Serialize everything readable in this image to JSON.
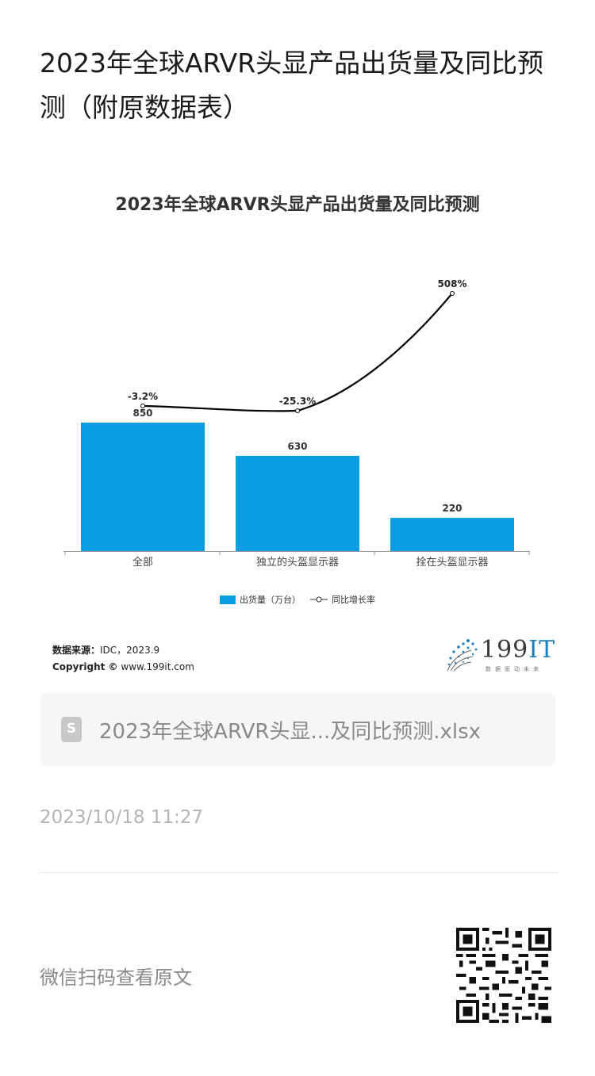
{
  "article": {
    "title": "2023年全球ARVR头显产品出货量及同比预测（附原数据表）"
  },
  "chart": {
    "title": "2023年全球ARVR头显产品出货量及同比预测",
    "source_label": "数据来源：",
    "source_value": "IDC，2023.9",
    "copyright_label": "Copyright ©",
    "copyright_value": "www.199it.com",
    "legend_bar": "出货量（万台）",
    "legend_line": "同比增长率",
    "colors": {
      "bar": "#0a9de3",
      "line": "#000000"
    }
  },
  "chart_data": {
    "type": "bar",
    "categories": [
      "全部",
      "独立的头盔显示器",
      "拴在头盔显示器"
    ],
    "series": [
      {
        "name": "出货量（万台）",
        "type": "bar",
        "values": [
          850,
          630,
          220
        ],
        "labels": [
          "850",
          "630",
          "220"
        ]
      },
      {
        "name": "同比增长率",
        "type": "line",
        "values": [
          -3.2,
          -25.3,
          508
        ],
        "labels": [
          "-3.2%",
          "-25.3%",
          "508%"
        ]
      }
    ],
    "legend": "bottom",
    "grid": false
  },
  "logo": {
    "text_main": "199",
    "text_accent": "IT",
    "tagline": "数据驱动未来"
  },
  "file": {
    "icon": "spreadsheet-icon",
    "name": "2023年全球ARVR头显...及同比预测.xlsx"
  },
  "meta": {
    "timestamp": "2023/10/18 11:27"
  },
  "footer": {
    "qr_label": "微信扫码查看原文",
    "qr_icon": "qr-code-icon"
  }
}
